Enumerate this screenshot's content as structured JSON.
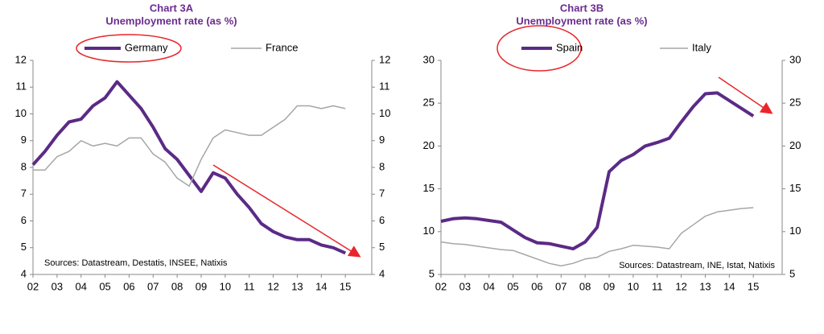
{
  "chart_data": [
    {
      "type": "line",
      "title": "Chart 3A",
      "subtitle": "Unemployment rate (as %)",
      "x": [
        2002,
        2002.5,
        2003,
        2003.5,
        2004,
        2004.5,
        2005,
        2005.5,
        2006,
        2006.5,
        2007,
        2007.5,
        2008,
        2008.5,
        2009,
        2009.5,
        2010,
        2010.5,
        2011,
        2011.5,
        2012,
        2012.5,
        2013,
        2013.5,
        2014,
        2014.5,
        2015
      ],
      "series": [
        {
          "name": "Germany",
          "color": "#5b2a86",
          "values": [
            8.1,
            8.6,
            9.2,
            9.7,
            9.8,
            10.3,
            10.6,
            11.2,
            10.7,
            10.2,
            9.5,
            8.7,
            8.3,
            7.7,
            7.1,
            7.8,
            7.6,
            7.0,
            6.5,
            5.9,
            5.6,
            5.4,
            5.3,
            5.3,
            5.1,
            5.0,
            4.8
          ]
        },
        {
          "name": "France",
          "color": "#a6a6a6",
          "values": [
            7.9,
            7.9,
            8.4,
            8.6,
            9.0,
            8.8,
            8.9,
            8.8,
            9.1,
            9.1,
            8.5,
            8.2,
            7.6,
            7.3,
            8.3,
            9.1,
            9.4,
            9.3,
            9.2,
            9.2,
            9.5,
            9.8,
            10.3,
            10.3,
            10.2,
            10.3,
            10.2
          ]
        }
      ],
      "xlim": [
        2002,
        2016.1
      ],
      "xticks": [
        {
          "value": 2002,
          "label": "02"
        },
        {
          "value": 2003,
          "label": "03"
        },
        {
          "value": 2004,
          "label": "04"
        },
        {
          "value": 2005,
          "label": "05"
        },
        {
          "value": 2006,
          "label": "06"
        },
        {
          "value": 2007,
          "label": "07"
        },
        {
          "value": 2008,
          "label": "08"
        },
        {
          "value": 2009,
          "label": "09"
        },
        {
          "value": 2010,
          "label": "10"
        },
        {
          "value": 2011,
          "label": "11"
        },
        {
          "value": 2012,
          "label": "12"
        },
        {
          "value": 2013,
          "label": "13"
        },
        {
          "value": 2014,
          "label": "14"
        },
        {
          "value": 2015,
          "label": "15"
        }
      ],
      "ylim": [
        4,
        12
      ],
      "yticks": [
        4,
        5,
        6,
        7,
        8,
        9,
        10,
        11,
        12
      ],
      "y2lim": [
        4,
        12
      ],
      "y2ticks": [
        4,
        5,
        6,
        7,
        8,
        9,
        10,
        11,
        12
      ],
      "annotation": "Sources: Datastream, Destatis, INSEE, Natixis"
    },
    {
      "type": "line",
      "title": "Chart 3B",
      "subtitle": "Unemployment rate (as %)",
      "x": [
        2002,
        2002.5,
        2003,
        2003.5,
        2004,
        2004.5,
        2005,
        2005.5,
        2006,
        2006.5,
        2007,
        2007.5,
        2008,
        2008.5,
        2009,
        2009.5,
        2010,
        2010.5,
        2011,
        2011.5,
        2012,
        2012.5,
        2013,
        2013.5,
        2014,
        2014.5,
        2015
      ],
      "series": [
        {
          "name": "Spain",
          "color": "#5b2a86",
          "values": [
            11.2,
            11.5,
            11.6,
            11.5,
            11.3,
            11.1,
            10.2,
            9.3,
            8.7,
            8.6,
            8.3,
            8.0,
            8.8,
            10.5,
            17.0,
            18.3,
            19.0,
            20.0,
            20.4,
            20.9,
            22.8,
            24.6,
            26.1,
            26.2,
            25.3,
            24.4,
            23.5
          ]
        },
        {
          "name": "Italy",
          "color": "#a6a6a6",
          "values": [
            8.8,
            8.6,
            8.5,
            8.3,
            8.1,
            7.9,
            7.8,
            7.3,
            6.8,
            6.3,
            6.0,
            6.3,
            6.8,
            7.0,
            7.7,
            8.0,
            8.4,
            8.3,
            8.2,
            8.0,
            9.8,
            10.8,
            11.8,
            12.3,
            12.5,
            12.7,
            12.8
          ]
        }
      ],
      "xlim": [
        2002,
        2016.2
      ],
      "xticks": [
        {
          "value": 2002,
          "label": "02"
        },
        {
          "value": 2003,
          "label": "03"
        },
        {
          "value": 2004,
          "label": "04"
        },
        {
          "value": 2005,
          "label": "05"
        },
        {
          "value": 2006,
          "label": "06"
        },
        {
          "value": 2007,
          "label": "07"
        },
        {
          "value": 2008,
          "label": "08"
        },
        {
          "value": 2009,
          "label": "09"
        },
        {
          "value": 2010,
          "label": "10"
        },
        {
          "value": 2011,
          "label": "11"
        },
        {
          "value": 2012,
          "label": "12"
        },
        {
          "value": 2013,
          "label": "13"
        },
        {
          "value": 2014,
          "label": "14"
        },
        {
          "value": 2015,
          "label": "15"
        }
      ],
      "ylim": [
        5,
        30
      ],
      "yticks": [
        5,
        10,
        15,
        20,
        25,
        30
      ],
      "y2lim": [
        5,
        30
      ],
      "y2ticks": [
        5,
        10,
        15,
        20,
        25,
        30
      ],
      "annotation": "Sources: Datastream, INE, Istat, Natixis"
    }
  ]
}
